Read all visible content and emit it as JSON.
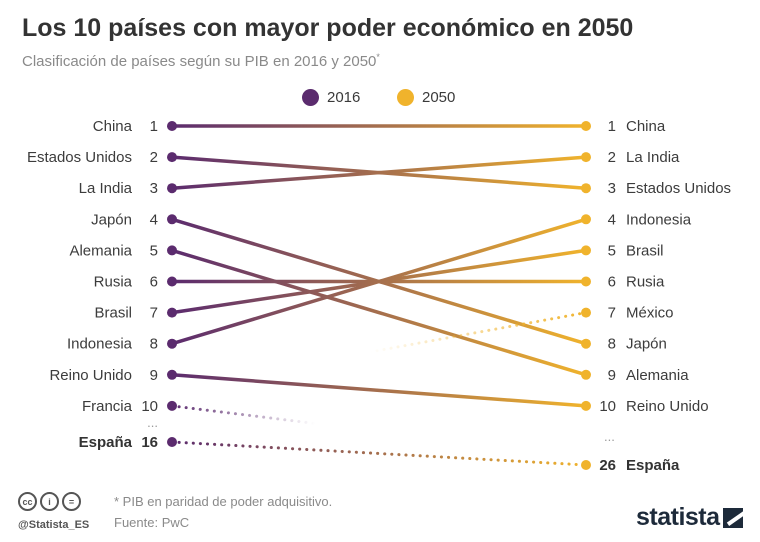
{
  "title": "Los 10 países con mayor poder económico en 2050",
  "subtitle": "Clasificación de países según su PIB en 2016 y 2050",
  "subtitle_mark": "*",
  "colors": {
    "y2016": "#5b2b6e",
    "y2050": "#f0b32c"
  },
  "legend": [
    {
      "label": "2016",
      "color": "#5b2b6e"
    },
    {
      "label": "2050",
      "color": "#f0b32c"
    }
  ],
  "chart_data": {
    "type": "slope",
    "title": "Los 10 países con mayor poder económico en 2050",
    "series": [
      "2016",
      "2050"
    ],
    "left": [
      {
        "country": "China",
        "rank": 1,
        "rank_label": "1"
      },
      {
        "country": "Estados Unidos",
        "rank": 2,
        "rank_label": "2"
      },
      {
        "country": "La India",
        "rank": 3,
        "rank_label": "3"
      },
      {
        "country": "Japón",
        "rank": 4,
        "rank_label": "4"
      },
      {
        "country": "Alemania",
        "rank": 5,
        "rank_label": "5"
      },
      {
        "country": "Rusia",
        "rank": 6,
        "rank_label": "6"
      },
      {
        "country": "Brasil",
        "rank": 7,
        "rank_label": "7"
      },
      {
        "country": "Indonesia",
        "rank": 8,
        "rank_label": "8"
      },
      {
        "country": "Reino Unido",
        "rank": 9,
        "rank_label": "9"
      },
      {
        "country": "Francia",
        "rank": 10,
        "rank_label": "10"
      },
      {
        "country": "España",
        "rank": 16,
        "rank_label": "16",
        "bold": true
      }
    ],
    "right": [
      {
        "country": "China",
        "rank": 1,
        "rank_label": "1"
      },
      {
        "country": "La India",
        "rank": 2,
        "rank_label": "2"
      },
      {
        "country": "Estados Unidos",
        "rank": 3,
        "rank_label": "3"
      },
      {
        "country": "Indonesia",
        "rank": 4,
        "rank_label": "4"
      },
      {
        "country": "Brasil",
        "rank": 5,
        "rank_label": "5"
      },
      {
        "country": "Rusia",
        "rank": 6,
        "rank_label": "6"
      },
      {
        "country": "México",
        "rank": 7,
        "rank_label": "7"
      },
      {
        "country": "Japón",
        "rank": 8,
        "rank_label": "8"
      },
      {
        "country": "Alemania",
        "rank": 9,
        "rank_label": "9"
      },
      {
        "country": "Reino Unido",
        "rank": 10,
        "rank_label": "10"
      },
      {
        "country": "España",
        "rank": 26,
        "rank_label": "26",
        "bold": true
      }
    ],
    "left_ellipsis": "...",
    "right_ellipsis": "..."
  },
  "footer": {
    "cc_icons": [
      "cc",
      "i",
      "="
    ],
    "handle": "@Statista_ES",
    "note": "* PIB en paridad de poder adquisitivo.",
    "source": "Fuente: PwC",
    "brand": "statista"
  }
}
